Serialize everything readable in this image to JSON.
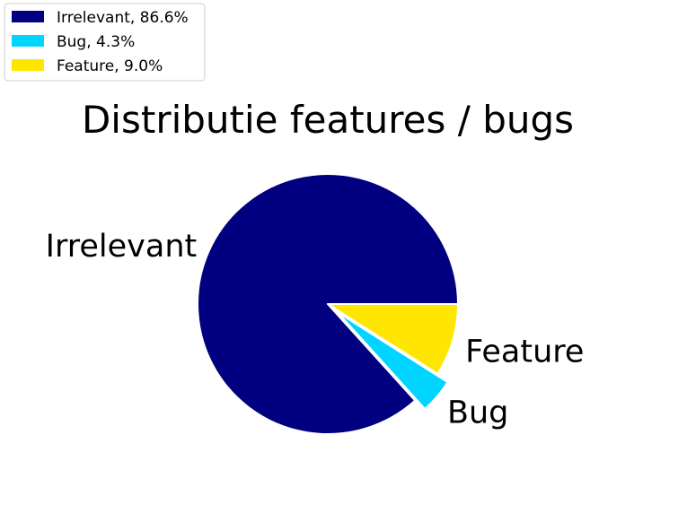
{
  "chart_data": {
    "type": "pie",
    "title": "Distributie features / bugs",
    "start_angle_deg": 0,
    "direction": "counterclockwise",
    "legend_placement": "top-left",
    "slices": [
      {
        "label": "Irrelevant",
        "value": 86.6,
        "legend": "Irrelevant, 86.6%",
        "color": "#000080",
        "explode": 0
      },
      {
        "label": "Bug",
        "value": 4.3,
        "legend": "Bug, 4.3%",
        "color": "#00D4FF",
        "explode": 0.1
      },
      {
        "label": "Feature",
        "value": 9.0,
        "legend": "Feature, 9.0%",
        "color": "#FFE600",
        "explode": 0
      }
    ]
  }
}
